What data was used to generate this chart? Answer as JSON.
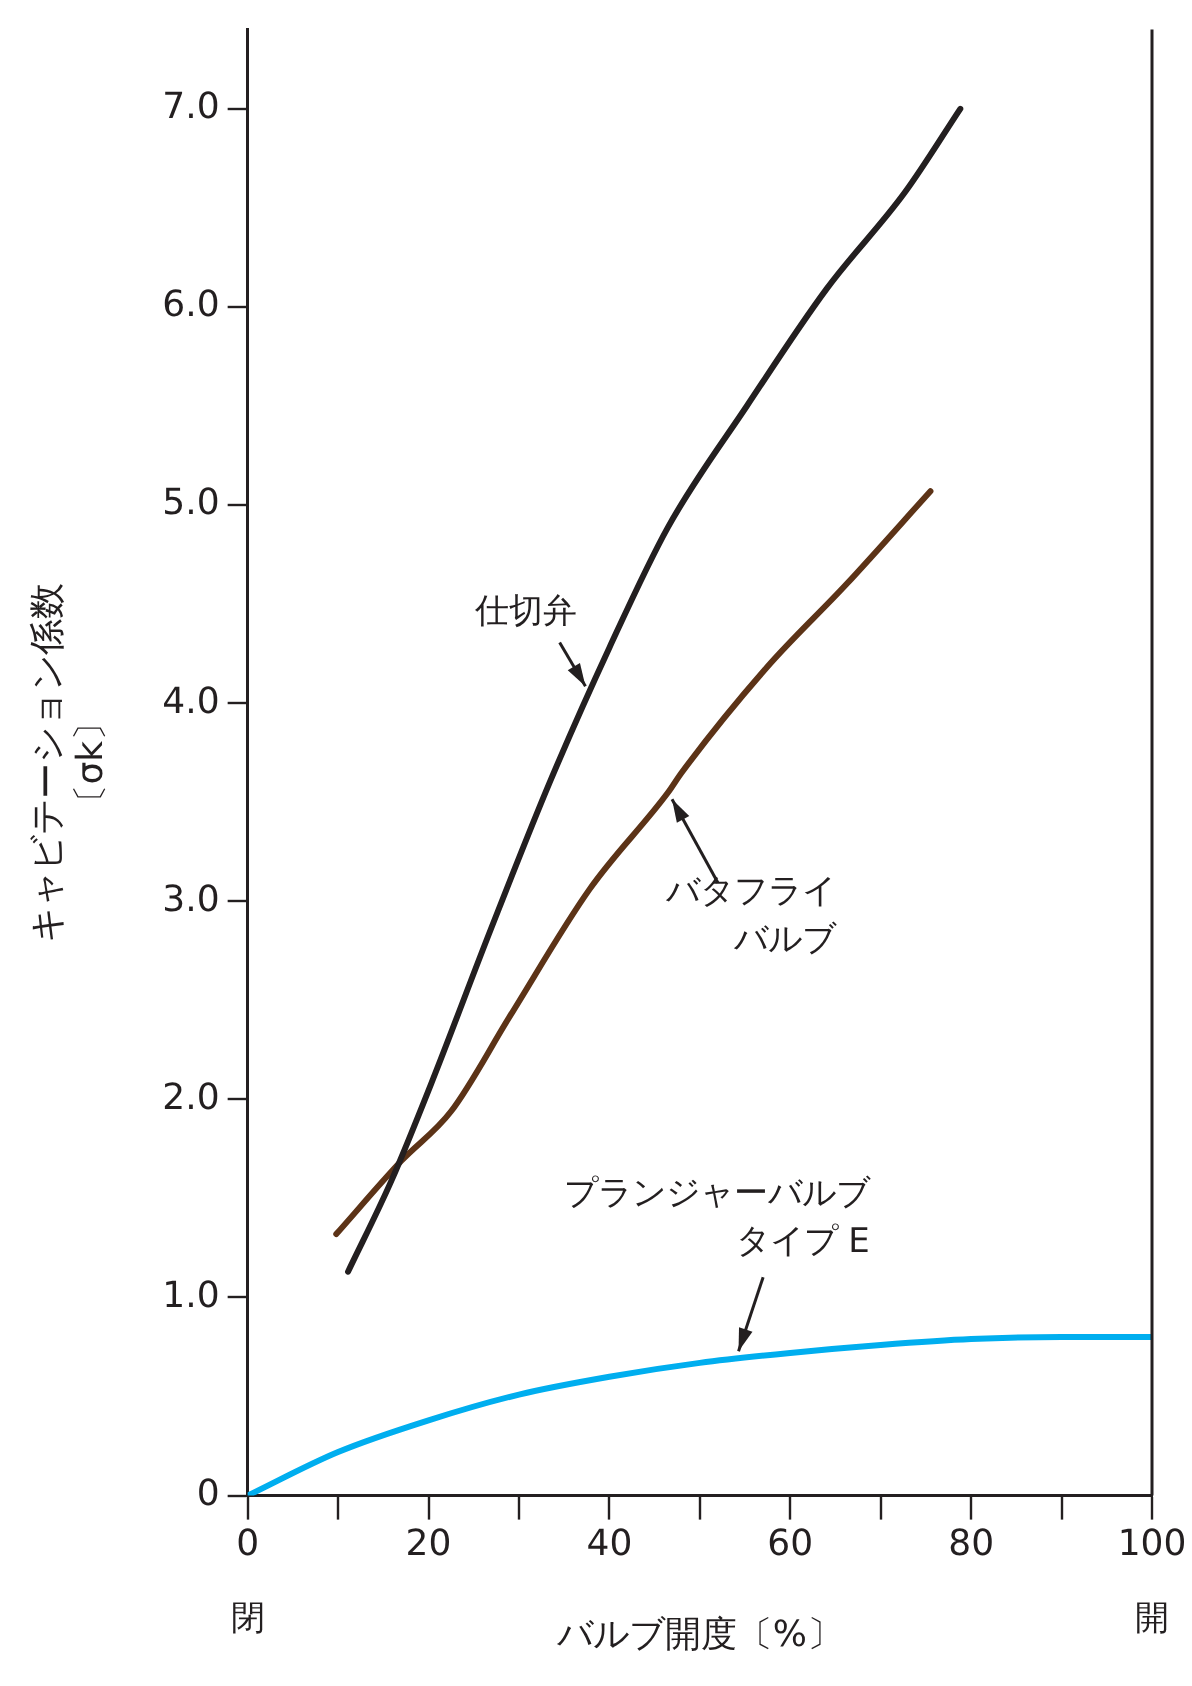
{
  "chart_data": {
    "type": "line",
    "xlabel": "バルブ開度〔%〕",
    "ylabel": "キャビテーション係数〔σk〕",
    "xlim": [
      0,
      100
    ],
    "xticks": [
      0,
      {
        "value": 10,
        "label": null
      },
      20,
      {
        "value": 30,
        "label": null
      },
      40,
      {
        "value": 50,
        "label": null
      },
      60,
      {
        "value": 70,
        "label": null
      },
      80,
      {
        "value": 90,
        "label": null
      },
      100
    ],
    "ylim": [
      0,
      7.4
    ],
    "yticks": [
      0,
      {
        "value": 1,
        "label": "1.0"
      },
      {
        "value": 2,
        "label": "2.0"
      },
      {
        "value": 3,
        "label": "3.0"
      },
      {
        "value": 4,
        "label": "4.0"
      },
      {
        "value": 5,
        "label": "5.0"
      },
      {
        "value": 6,
        "label": "6.0"
      },
      {
        "value": 7,
        "label": "7.0"
      }
    ],
    "grid": false,
    "legend": false,
    "marker": "none",
    "line_style": "solid",
    "series": [
      {
        "color": "#231f20",
        "x": [
          11.1,
          15.9,
          20.3,
          26.9,
          33.4,
          40,
          46.5,
          55.2,
          64,
          72.7,
          78.8
        ],
        "values": [
          1.13,
          1.59,
          2.08,
          2.86,
          3.6,
          4.28,
          4.89,
          5.5,
          6.09,
          6.58,
          7.0
        ]
      },
      {
        "color": "#5c3317",
        "x": [
          9.8,
          17,
          22.5,
          29,
          37.8,
          46.5,
          48,
          57.4,
          66.2,
          75.5
        ],
        "values": [
          1.32,
          1.69,
          1.94,
          2.42,
          3.06,
          3.55,
          3.65,
          4.18,
          4.6,
          5.07
        ]
      },
      {
        "color": "#00aeef",
        "x": [
          0,
          10,
          20,
          30,
          40,
          50,
          60,
          70,
          80,
          90,
          100
        ],
        "values": [
          0,
          0.22,
          0.38,
          0.51,
          0.6,
          0.67,
          0.72,
          0.76,
          0.79,
          0.8,
          0.8
        ]
      }
    ],
    "annotations": [
      {
        "text": "仕切弁",
        "x": 37.8,
        "y": 4.05
      },
      {
        "text": "バタフライ",
        "x": 46.5,
        "y": 3.55
      },
      "バルブ",
      "プランジャーバルブ",
      {
        "text": "タイプ E",
        "x": 54,
        "y": 0.69
      },
      "閉",
      "開"
    ]
  }
}
